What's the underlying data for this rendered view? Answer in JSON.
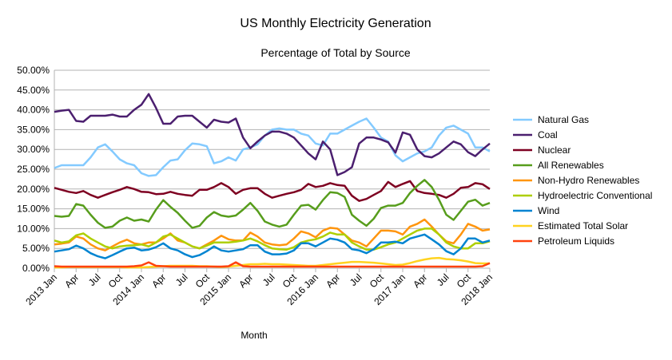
{
  "chart_data": {
    "type": "line",
    "title": "US Monthly Electricity Generation",
    "subtitle": "Percentage of Total by Source",
    "x_label": "Month",
    "categories": [
      "2013 Jan",
      null,
      null,
      "Apr",
      null,
      null,
      "Jul",
      null,
      null,
      "Oct",
      null,
      null,
      "2014 Jan",
      null,
      null,
      "Apr",
      null,
      null,
      "Jul",
      null,
      null,
      "Oct",
      null,
      null,
      "2015 Jan",
      null,
      null,
      "Apr",
      null,
      null,
      "Jul",
      null,
      null,
      "Oct",
      null,
      null,
      "2016 Jan",
      null,
      null,
      "Apr",
      null,
      null,
      "Jul",
      null,
      null,
      "Oct",
      null,
      null,
      "2017 Jan",
      null,
      null,
      "Apr",
      null,
      null,
      "Jul",
      null,
      null,
      "Oct",
      null,
      null,
      "2018 Jan"
    ],
    "ylim": [
      0,
      50
    ],
    "yticks": [
      {
        "value": 0,
        "label": "0.00%"
      },
      {
        "value": 5,
        "label": "5.00%"
      },
      {
        "value": 10,
        "label": "10.00%"
      },
      {
        "value": 15,
        "label": "15.00%"
      },
      {
        "value": 20,
        "label": "20.00%"
      },
      {
        "value": 25,
        "label": "25.00%"
      },
      {
        "value": 30,
        "label": "30.00%"
      },
      {
        "value": 35,
        "label": "35.00%"
      },
      {
        "value": 40,
        "label": "40.00%"
      },
      {
        "value": 45,
        "label": "45.00%"
      },
      {
        "value": 50,
        "label": "50.00%"
      }
    ],
    "grid": true,
    "legend": "right",
    "series": [
      {
        "name": "Natural Gas",
        "color": "#83caff",
        "values": [
          25.3,
          26,
          26,
          26,
          26,
          28,
          30.5,
          31.3,
          29.5,
          27.5,
          26.5,
          26,
          24,
          23.3,
          23.5,
          25.5,
          27.2,
          27.5,
          29.8,
          31.5,
          31.3,
          30.8,
          26.5,
          27,
          28,
          27.2,
          30,
          30.5,
          31.3,
          33.5,
          35,
          35.3,
          35,
          35,
          34,
          33.5,
          31.5,
          31,
          34,
          34,
          35,
          36,
          37,
          37.8,
          35.5,
          33,
          32,
          28.5,
          27,
          28,
          29,
          29.5,
          30.5,
          33.5,
          35.5,
          36,
          35,
          34,
          30.5,
          30.5,
          29.5
        ]
      },
      {
        "name": "Coal",
        "color": "#4b1f6f",
        "values": [
          39.5,
          39.8,
          40,
          37.2,
          37,
          38.5,
          38.5,
          38.5,
          38.8,
          38.3,
          38.3,
          40,
          41.3,
          44,
          40.5,
          36.5,
          36.5,
          38.3,
          38.5,
          38.5,
          37,
          35.5,
          37.5,
          37,
          36.8,
          37.8,
          33,
          30.3,
          32,
          33.5,
          34.5,
          34.5,
          34,
          33,
          31,
          29,
          27.5,
          32,
          30,
          23.5,
          24.3,
          25.5,
          31.5,
          33,
          33,
          32.5,
          31.8,
          29.2,
          34.3,
          33.7,
          30,
          28.3,
          28,
          29,
          30.5,
          32,
          31.3,
          29.3,
          28.3,
          30,
          31.5
        ]
      },
      {
        "name": "Nuclear",
        "color": "#7e0021",
        "values": [
          20.3,
          19.8,
          19.3,
          19,
          19.5,
          18.5,
          17.8,
          18.5,
          19.2,
          19.8,
          20.5,
          20,
          19.3,
          19.2,
          18.7,
          18.8,
          19.3,
          18.8,
          18.5,
          18.3,
          19.8,
          19.8,
          20.5,
          21.5,
          20.5,
          18.8,
          19.8,
          20.2,
          20.2,
          18.8,
          17.8,
          18.3,
          18.8,
          19.2,
          19.8,
          21.3,
          20.5,
          20.8,
          21.5,
          21,
          20.8,
          18.3,
          17,
          17.5,
          18.5,
          19.5,
          21.8,
          20.5,
          21.3,
          22,
          19.5,
          19,
          18.8,
          18.5,
          17.8,
          18.8,
          20.3,
          20.5,
          21.5,
          21.2,
          20
        ]
      },
      {
        "name": "All Renewables",
        "color": "#579d1c",
        "values": [
          13.2,
          13,
          13.2,
          16.2,
          15.8,
          13.5,
          11.5,
          10.2,
          10.5,
          12,
          12.8,
          12,
          12.3,
          11.8,
          14.8,
          17.2,
          15.5,
          14,
          12,
          10.2,
          10.7,
          12.8,
          14.2,
          13.3,
          13,
          13.3,
          14.8,
          16.5,
          14.5,
          11.8,
          11,
          10.5,
          11,
          13.5,
          15.8,
          16,
          14.8,
          17.2,
          19.2,
          19,
          18,
          13.5,
          12,
          10.7,
          12.5,
          15.2,
          15.8,
          15.8,
          16.5,
          19,
          20.8,
          22.3,
          20.5,
          17.3,
          13.5,
          12.2,
          14.5,
          16.8,
          17.3,
          15.8,
          16.5
        ]
      },
      {
        "name": "Non-Hydro Renewables",
        "color": "#ff950e",
        "values": [
          6,
          6.2,
          6.5,
          8,
          7.5,
          6,
          5,
          4.5,
          5.5,
          6.5,
          7.2,
          6.3,
          6,
          6.5,
          6.5,
          7.5,
          8.8,
          7,
          6.5,
          5.5,
          5,
          6,
          7,
          8.2,
          7.3,
          7,
          7,
          9,
          8,
          6.5,
          6,
          5.8,
          6,
          7.5,
          9.3,
          8.8,
          7.8,
          9.5,
          10.2,
          10,
          8.5,
          7,
          6.5,
          5.5,
          7.5,
          9.5,
          9.5,
          9.3,
          8.5,
          10.5,
          11.2,
          12.3,
          10.5,
          8.5,
          6.8,
          6.3,
          8.5,
          11.2,
          10.5,
          9.5,
          9.8
        ]
      },
      {
        "name": "Hydroelectric Conventional",
        "color": "#aecf00",
        "values": [
          7,
          6.5,
          6.8,
          8.3,
          8.8,
          7.5,
          6.5,
          5.5,
          5,
          5.5,
          5.7,
          5.8,
          6,
          5.5,
          6.5,
          8,
          8.5,
          7.5,
          6.5,
          5.5,
          5,
          5.7,
          6.5,
          6.5,
          6.5,
          6.7,
          7,
          7.5,
          6.8,
          5.8,
          5,
          4.8,
          4.7,
          5.3,
          6.5,
          7,
          7.3,
          8,
          9,
          8.5,
          8.5,
          6.5,
          5.5,
          4.7,
          4.7,
          5.3,
          6,
          6.5,
          7.5,
          8.5,
          9.5,
          10,
          10,
          8.5,
          6.5,
          5.5,
          5,
          5,
          6.3,
          6.3,
          6.8
        ]
      },
      {
        "name": "Wind",
        "color": "#0084d1",
        "values": [
          4.2,
          4.5,
          4.8,
          5.7,
          5,
          3.8,
          3,
          2.5,
          3.3,
          4.2,
          5,
          5.2,
          4.5,
          4.7,
          5.3,
          6.3,
          5,
          4.5,
          3.5,
          2.8,
          3.3,
          4.3,
          5.5,
          4.5,
          4.2,
          4.5,
          4.8,
          5.8,
          5.8,
          4.2,
          3.5,
          3.5,
          3.7,
          4.5,
          6.3,
          6.3,
          5.5,
          6.5,
          7.5,
          7.2,
          6.5,
          4.8,
          4.5,
          3.8,
          4.8,
          6.5,
          6.5,
          6.7,
          6.3,
          7.5,
          8,
          8.5,
          7.3,
          6,
          4.3,
          3.5,
          5,
          7.5,
          7.5,
          6.5,
          7
        ]
      },
      {
        "name": "Estimated Total Solar",
        "color": "#ffd320",
        "values": [
          0.2,
          0.2,
          0.3,
          0.3,
          0.3,
          0.3,
          0.3,
          0.3,
          0.3,
          0.3,
          0.2,
          0.2,
          0.2,
          0.3,
          0.4,
          0.5,
          0.6,
          0.6,
          0.6,
          0.6,
          0.5,
          0.5,
          0.4,
          0.3,
          0.4,
          0.6,
          0.8,
          1,
          1,
          1.1,
          1,
          1,
          0.9,
          0.8,
          0.7,
          0.6,
          0.6,
          0.8,
          1,
          1.2,
          1.4,
          1.6,
          1.6,
          1.5,
          1.4,
          1.2,
          1,
          0.8,
          0.9,
          1.3,
          1.8,
          2.2,
          2.5,
          2.6,
          2.3,
          2.2,
          2,
          1.7,
          1.3,
          1.2,
          1.2
        ]
      },
      {
        "name": "Petroleum Liquids",
        "color": "#ff420e",
        "values": [
          0.5,
          0.4,
          0.4,
          0.4,
          0.4,
          0.4,
          0.4,
          0.4,
          0.4,
          0.4,
          0.4,
          0.5,
          0.7,
          1.5,
          0.6,
          0.5,
          0.4,
          0.4,
          0.4,
          0.4,
          0.4,
          0.4,
          0.4,
          0.4,
          0.5,
          1.5,
          0.5,
          0.4,
          0.4,
          0.4,
          0.4,
          0.4,
          0.4,
          0.4,
          0.4,
          0.4,
          0.4,
          0.4,
          0.4,
          0.4,
          0.4,
          0.4,
          0.4,
          0.4,
          0.4,
          0.4,
          0.4,
          0.4,
          0.4,
          0.4,
          0.4,
          0.4,
          0.4,
          0.4,
          0.4,
          0.4,
          0.4,
          0.4,
          0.4,
          0.5,
          1.3
        ]
      }
    ]
  }
}
